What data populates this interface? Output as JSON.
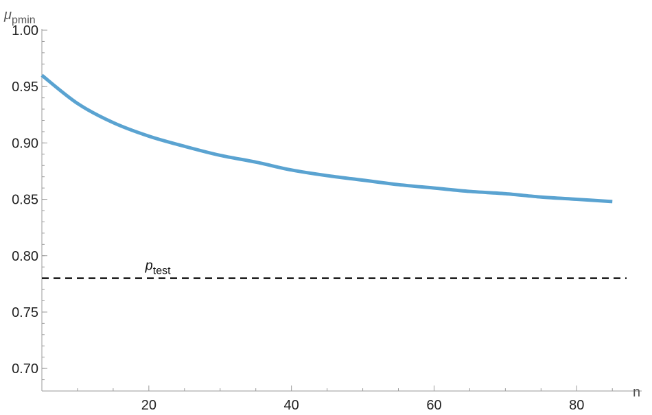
{
  "chart_data": {
    "type": "line",
    "xlabel": "n",
    "ylabel": {
      "base": "μ",
      "sub": "pmin"
    },
    "xlim": [
      5,
      87
    ],
    "ylim": [
      0.68,
      1.0
    ],
    "x_ticks": [
      20,
      40,
      60,
      80
    ],
    "x_tick_labels": [
      "20",
      "40",
      "60",
      "80"
    ],
    "y_ticks": [
      0.7,
      0.75,
      0.8,
      0.85,
      0.9,
      0.95,
      1.0
    ],
    "y_tick_labels": [
      "0.70",
      "0.75",
      "0.80",
      "0.85",
      "0.90",
      "0.95",
      "1.00"
    ],
    "grid": false,
    "series": [
      {
        "color": "#5aa3d1",
        "style": "solid",
        "x": [
          5,
          10,
          15,
          20,
          25,
          30,
          35,
          40,
          45,
          50,
          55,
          60,
          65,
          70,
          75,
          80,
          85
        ],
        "y": [
          0.96,
          0.935,
          0.918,
          0.906,
          0.897,
          0.889,
          0.883,
          0.876,
          0.871,
          0.867,
          0.863,
          0.86,
          0.857,
          0.855,
          0.852,
          0.85,
          0.848
        ]
      }
    ],
    "reference_line": {
      "label": {
        "base": "p",
        "sub": "test"
      },
      "y": 0.78,
      "color": "#111111",
      "style": "dashed"
    }
  }
}
